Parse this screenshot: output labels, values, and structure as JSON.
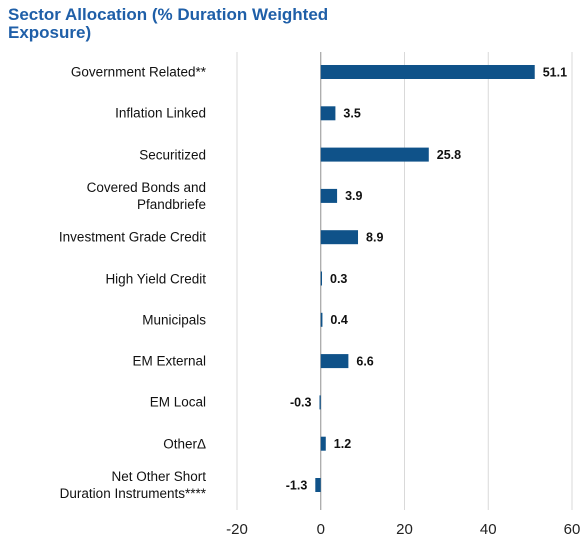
{
  "chart_data": {
    "type": "hbar",
    "title": "Sector Allocation (% Duration Weighted Exposure)",
    "categories": [
      "Government Related**",
      "Inflation Linked",
      "Securitized",
      "Covered Bonds and\nPfandbriefe",
      "Investment Grade Credit",
      "High Yield Credit",
      "Municipals",
      "EM External",
      "EM Local",
      "OtherΔ",
      "Net Other Short\nDuration Instruments****"
    ],
    "values": [
      51.1,
      3.5,
      25.8,
      3.9,
      8.9,
      0.3,
      0.4,
      6.6,
      -0.3,
      1.2,
      -1.3
    ],
    "color": "#0f5289",
    "xlim": [
      -20,
      60
    ],
    "xticks": [
      -20,
      0,
      20,
      40,
      60
    ],
    "grid": true
  }
}
